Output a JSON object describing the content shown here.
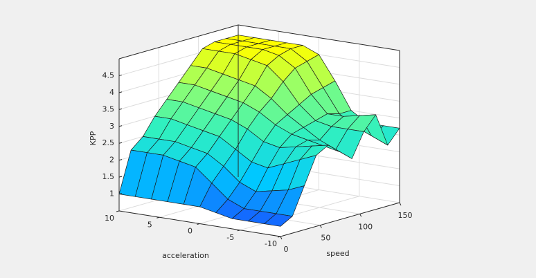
{
  "chart_data": {
    "type": "surface",
    "x_label": "acceleration",
    "y_label": "speed",
    "z_label": "KPP",
    "x": [
      10,
      8,
      6,
      4,
      2,
      0,
      -2,
      -4,
      -6,
      -8,
      -10
    ],
    "y": [
      0,
      15,
      30,
      45,
      60,
      75,
      90,
      105,
      120,
      135,
      150
    ],
    "z": [
      [
        1,
        1,
        1,
        1,
        1,
        1,
        0.9,
        0.8,
        0.8,
        0.8,
        0.8
      ],
      [
        2.2,
        2.2,
        2.2,
        2.1,
        2.0,
        1.6,
        1.2,
        1.0,
        1.0,
        1.0,
        1.0
      ],
      [
        2.5,
        2.5,
        2.5,
        2.4,
        2.3,
        2.0,
        1.6,
        1.4,
        1.5,
        1.6,
        1.8
      ],
      [
        3.0,
        3.0,
        2.9,
        2.8,
        2.7,
        2.4,
        2.1,
        2.0,
        2.2,
        2.4,
        2.6
      ],
      [
        3.4,
        3.4,
        3.3,
        3.2,
        3.1,
        2.9,
        2.6,
        2.5,
        2.6,
        2.7,
        2.8
      ],
      [
        3.8,
        3.8,
        3.7,
        3.6,
        3.5,
        3.3,
        3.0,
        2.8,
        2.7,
        2.6,
        2.5
      ],
      [
        4.2,
        4.2,
        4.1,
        4.0,
        3.9,
        3.6,
        3.2,
        2.9,
        2.6,
        2.4,
        2.2
      ],
      [
        4.6,
        4.6,
        4.6,
        4.5,
        4.4,
        4.0,
        3.4,
        3.0,
        2.9,
        2.9,
        2.9
      ],
      [
        4.7,
        4.7,
        4.7,
        4.7,
        4.6,
        4.3,
        3.6,
        3.1,
        3.1,
        3.2,
        3.3
      ],
      [
        4.7,
        4.7,
        4.7,
        4.7,
        4.7,
        4.4,
        3.7,
        3.0,
        2.7,
        2.5,
        2.3
      ],
      [
        4.7,
        4.7,
        4.7,
        4.7,
        4.7,
        4.5,
        3.8,
        3.0,
        2.7,
        2.7,
        2.7
      ]
    ],
    "xlim": [
      -10,
      10
    ],
    "ylim": [
      0,
      150
    ],
    "zlim": [
      0.5,
      5
    ],
    "xticks": [
      10,
      5,
      0,
      -5,
      -10
    ],
    "yticks": [
      0,
      50,
      100,
      150
    ],
    "zticks": [
      1,
      1.5,
      2,
      2.5,
      3,
      3.5,
      4,
      4.5
    ],
    "grid": true,
    "colormap": [
      "#1560ff",
      "#00c8ff",
      "#30f0c0",
      "#90ff70",
      "#ffff00"
    ],
    "edge_color": "#1a1a1a"
  }
}
